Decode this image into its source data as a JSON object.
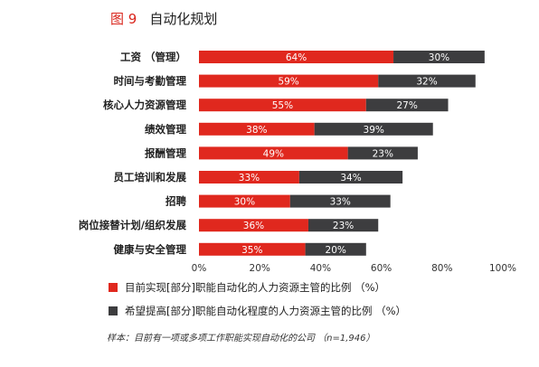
{
  "figure": {
    "number": "图 9",
    "title": "自动化规划"
  },
  "colors": {
    "current": "#e0281e",
    "desired": "#3d3d3f",
    "bar_text": "#ffffff",
    "title_number": "#d9241b"
  },
  "chart_data": {
    "type": "bar",
    "orientation": "horizontal",
    "stacked": true,
    "categories": [
      "工资 （管理）",
      "时间与考勤管理",
      "核心人力资源管理",
      "绩效管理",
      "报酬管理",
      "员工培训和发展",
      "招聘",
      "岗位接替计划/组织发展",
      "健康与安全管理"
    ],
    "series": [
      {
        "name": "目前实现[部分]职能自动化的人力资源主管的比例 （%）",
        "values": [
          64,
          59,
          55,
          38,
          49,
          33,
          30,
          36,
          35
        ],
        "labels": [
          "64%",
          "59%",
          "55%",
          "38%",
          "49%",
          "33%",
          "30%",
          "36%",
          "35%"
        ]
      },
      {
        "name": "希望提高[部分]职能自动化程度的人力资源主管的比例 （%）",
        "values": [
          30,
          32,
          27,
          39,
          23,
          34,
          33,
          23,
          20
        ],
        "labels": [
          "30%",
          "32%",
          "27%",
          "39%",
          "23%",
          "34%",
          "33%",
          "23%",
          "20%"
        ]
      }
    ],
    "xlim": [
      0,
      100
    ],
    "xticks": [
      0,
      20,
      40,
      60,
      80,
      100
    ],
    "xtick_labels": [
      "0%",
      "20%",
      "40%",
      "60%",
      "80%",
      "100%"
    ],
    "grid": false,
    "legend_position": "bottom"
  },
  "note": "样本：目前有一项或多项工作职能实现自动化的公司 （n=1,946）"
}
